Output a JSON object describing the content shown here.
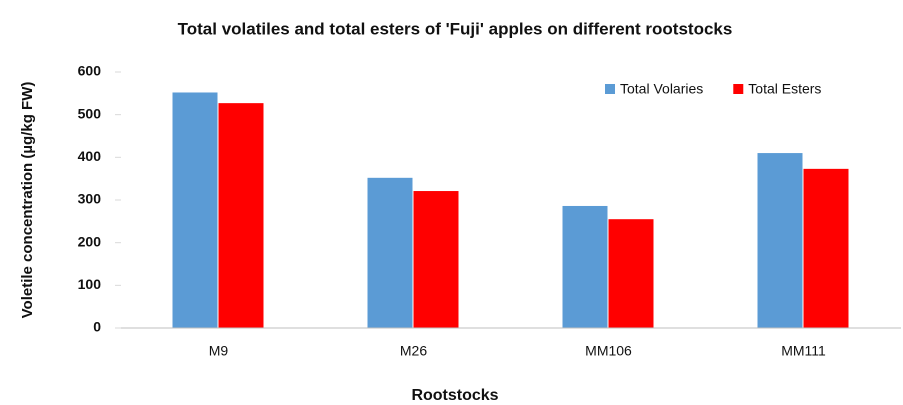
{
  "chart_data": {
    "type": "bar",
    "title": "Total volatiles and total esters of 'Fuji' apples on different rootstocks",
    "x_label": "Rootstocks",
    "y_label": "Voletile concentration (µg/kg FW)",
    "categories": [
      "M9",
      "M26",
      "MM106",
      "MM111"
    ],
    "series": [
      {
        "name": "Total Volaries",
        "color": "#5b9bd5",
        "values": [
          552,
          352,
          286,
          410
        ]
      },
      {
        "name": "Total Esters",
        "color": "#ff0000",
        "values": [
          527,
          321,
          255,
          373
        ]
      }
    ],
    "ylim": [
      0,
      600
    ],
    "yticks": [
      0,
      100,
      200,
      300,
      400,
      500,
      600
    ],
    "grid": false,
    "legend": "top-right"
  }
}
